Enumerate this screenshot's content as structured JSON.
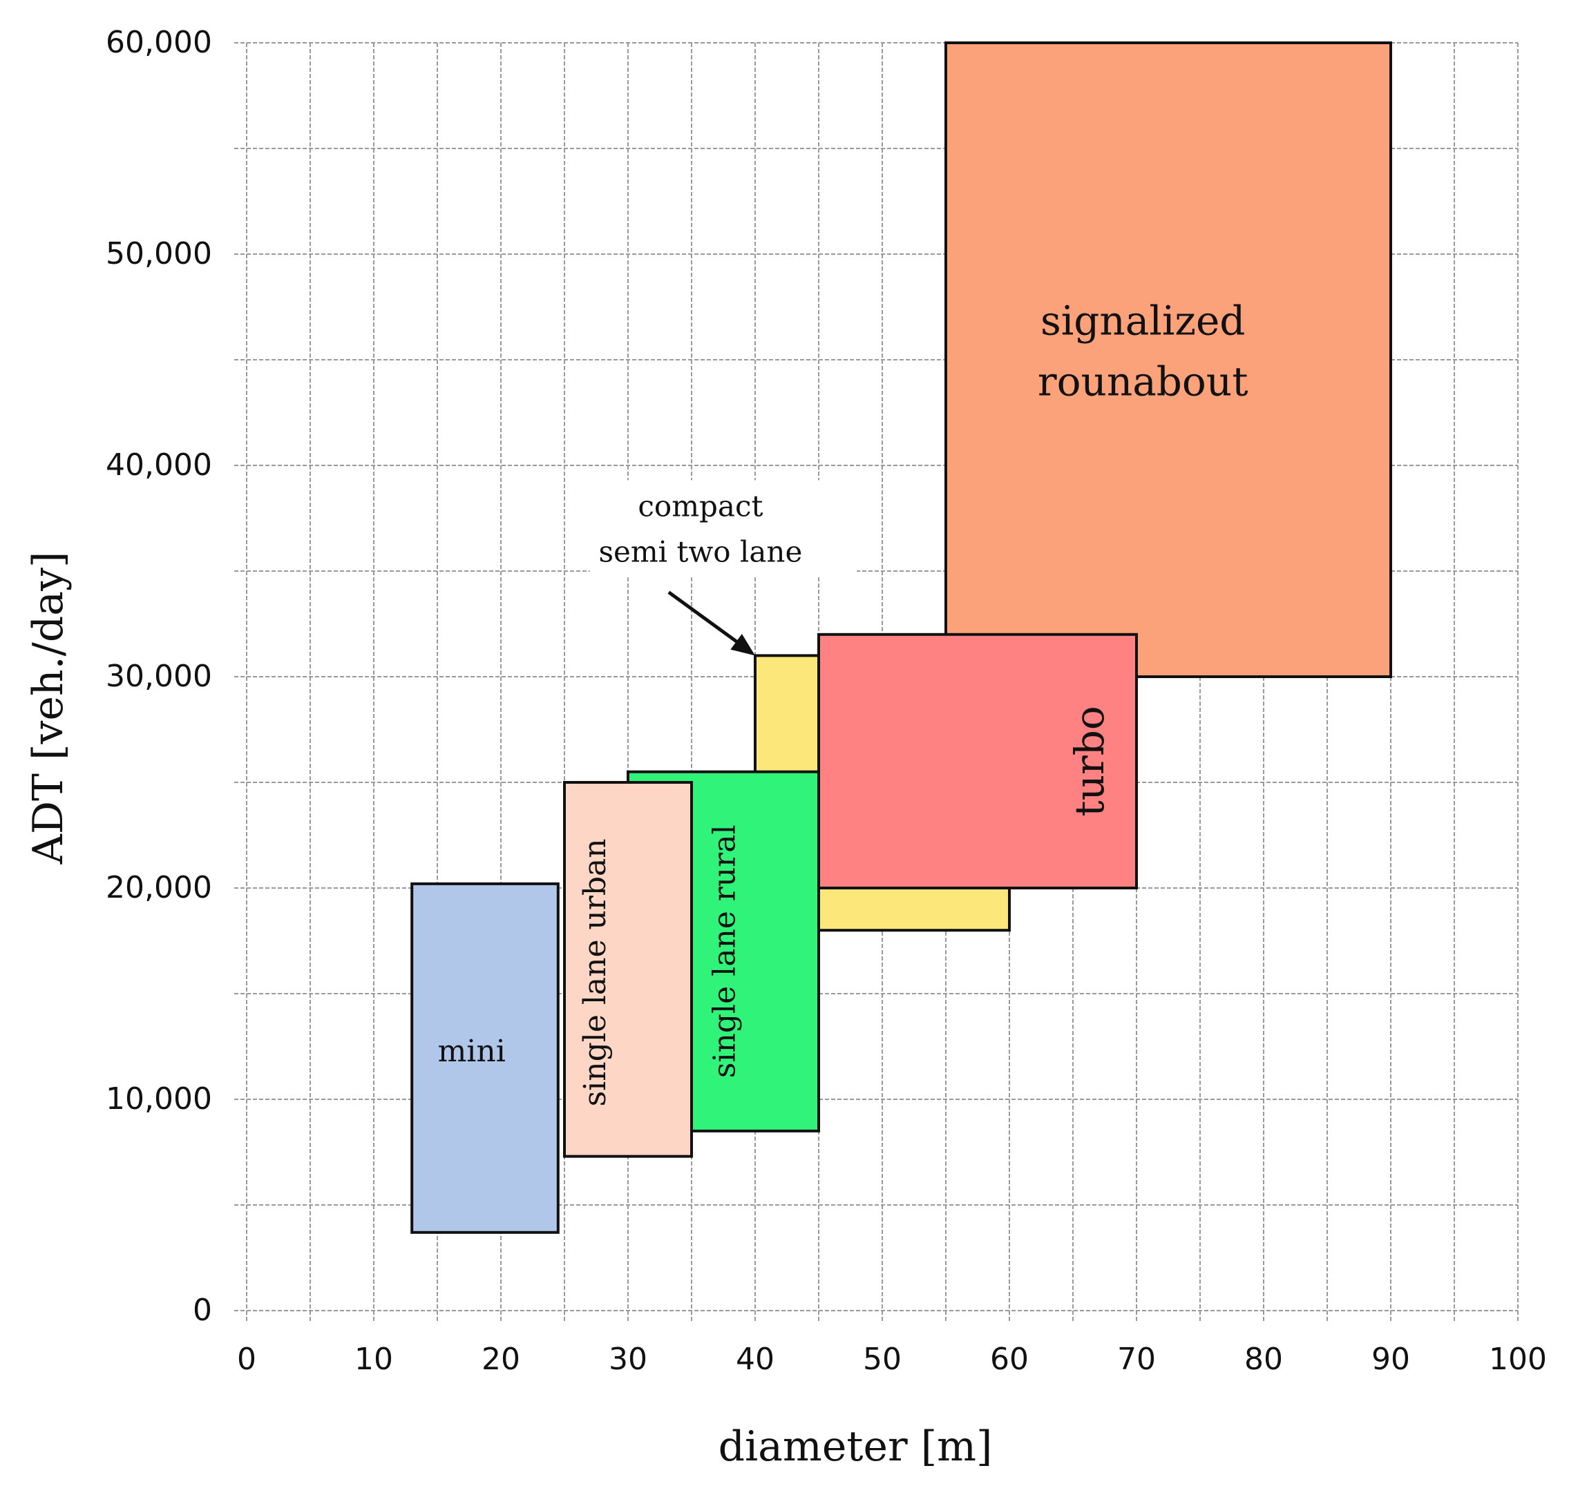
{
  "chart_data": {
    "type": "range-rectangles",
    "xlabel": "diameter [m]",
    "ylabel": "ADT [veh./day]",
    "xlim": [
      0,
      100
    ],
    "ylim": [
      0,
      60000
    ],
    "x_ticks": [
      "0",
      "10",
      "20",
      "30",
      "40",
      "50",
      "60",
      "70",
      "80",
      "90",
      "100"
    ],
    "x_tick_values": [
      0,
      10,
      20,
      30,
      40,
      50,
      60,
      70,
      80,
      90,
      100
    ],
    "y_ticks": [
      "0",
      "10,000",
      "20,000",
      "30,000",
      "40,000",
      "50,000",
      "60,000"
    ],
    "y_tick_values": [
      0,
      10000,
      20000,
      30000,
      40000,
      50000,
      60000
    ],
    "grid": true,
    "grid_x_step": 5,
    "grid_y_step": 5000,
    "boxes": [
      {
        "id": "signalized",
        "label_lines": [
          "signalized",
          "rounabout"
        ],
        "x_min": 55,
        "x_max": 90,
        "y_min": 30000,
        "y_max": 60000,
        "color": "#FCA27B",
        "orientation": "horizontal"
      },
      {
        "id": "compact",
        "label_lines": [],
        "x_min": 40,
        "x_max": 60,
        "y_min": 18000,
        "y_max": 31000,
        "color": "#FCE87A",
        "orientation": "horizontal"
      },
      {
        "id": "turbo",
        "label_lines": [
          "turbo"
        ],
        "x_min": 45,
        "x_max": 70,
        "y_min": 20000,
        "y_max": 32000,
        "color": "#FE8282",
        "orientation": "vertical"
      },
      {
        "id": "rural",
        "label_lines": [
          "single lane rural"
        ],
        "x_min": 30,
        "x_max": 45,
        "y_min": 8500,
        "y_max": 25500,
        "color": "#30F47A",
        "orientation": "vertical"
      },
      {
        "id": "urban",
        "label_lines": [
          "single lane urban"
        ],
        "x_min": 25,
        "x_max": 35,
        "y_min": 7300,
        "y_max": 25000,
        "color": "#FDD6C6",
        "orientation": "vertical"
      },
      {
        "id": "mini",
        "label_lines": [
          "mini"
        ],
        "x_min": 13,
        "x_max": 24.5,
        "y_min": 3700,
        "y_max": 20200,
        "color": "#B0C7EA",
        "orientation": "horizontal"
      }
    ],
    "annotation": {
      "lines": [
        "compact",
        "semi two lane"
      ],
      "arrow_target": [
        40,
        31000
      ]
    }
  }
}
